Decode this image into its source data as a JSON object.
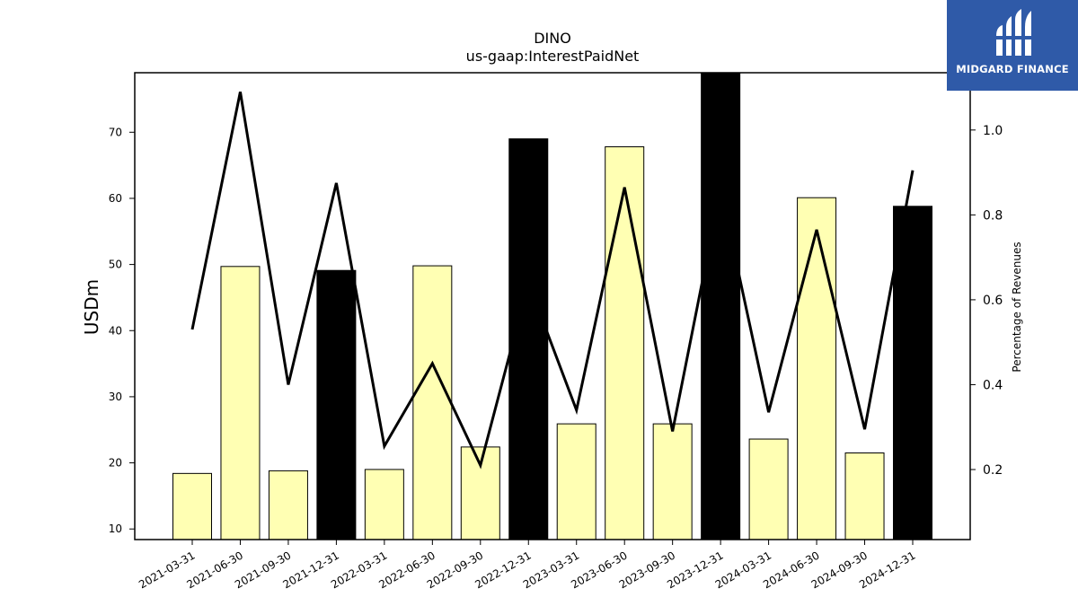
{
  "brand": {
    "name": "MIDGARD FINANCE",
    "bg_color": "#2f5aa8"
  },
  "chart_data": {
    "type": "bar",
    "title": "DINO",
    "subtitle": "us-gaap:InterestPaidNet",
    "ylabel": "USDm",
    "ylabel_right": "Percentage of Revenues",
    "ylim": [
      8.4,
      79.0
    ],
    "ylim_right": [
      0.035,
      1.135
    ],
    "yticks": [
      10,
      20,
      30,
      40,
      50,
      60,
      70
    ],
    "yticks_right": [
      0.2,
      0.4,
      0.6,
      0.8,
      1.0
    ],
    "categories": [
      "2021-03-31",
      "2021-06-30",
      "2021-09-30",
      "2021-12-31",
      "2022-03-31",
      "2022-06-30",
      "2022-09-30",
      "2022-12-31",
      "2023-03-31",
      "2023-06-30",
      "2023-09-30",
      "2023-12-31",
      "2024-03-31",
      "2024-06-30",
      "2024-09-30",
      "2024-12-31"
    ],
    "series": [
      {
        "kind": "bar",
        "values": [
          18.4,
          49.7,
          18.8,
          49.1,
          19.0,
          49.8,
          22.4,
          69.0,
          25.9,
          67.8,
          25.9,
          79.0,
          23.6,
          60.1,
          21.5,
          58.8
        ],
        "colors": [
          "#ffffb3",
          "#ffffb3",
          "#ffffb3",
          "#000000",
          "#ffffb3",
          "#ffffb3",
          "#ffffb3",
          "#000000",
          "#ffffb3",
          "#ffffb3",
          "#ffffb3",
          "#000000",
          "#ffffb3",
          "#ffffb3",
          "#ffffb3",
          "#000000"
        ]
      },
      {
        "kind": "line",
        "axis": "right",
        "color": "#000000",
        "values": [
          0.53,
          1.09,
          0.4,
          0.875,
          0.255,
          0.45,
          0.21,
          0.64,
          0.34,
          0.865,
          0.29,
          0.86,
          0.335,
          0.765,
          0.295,
          0.905
        ]
      }
    ]
  }
}
